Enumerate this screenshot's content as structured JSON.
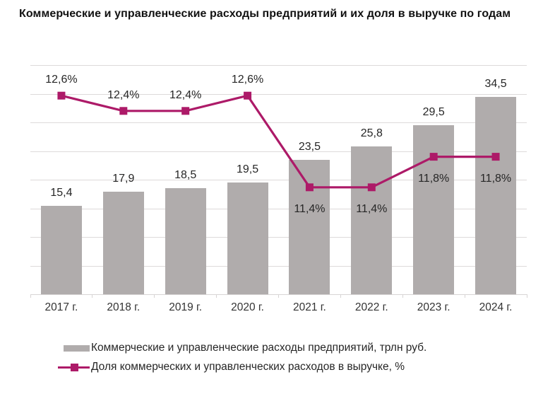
{
  "title": "Коммерческие и управленческие расходы предприятий и их доля в выручке по годам",
  "colors": {
    "bar": "#b0acac",
    "line": "#ad1a68",
    "grid": "#dddada",
    "axis": "#d7d4d4",
    "label": "#262626",
    "title": "#111111",
    "background": "#ffffff"
  },
  "chart_data": {
    "type": "bar+line combo",
    "title": "Коммерческие и управленческие расходы предприятий и их доля в выручке по годам",
    "categories": [
      "2017 г.",
      "2018 г.",
      "2019 г.",
      "2020 г.",
      "2021 г.",
      "2022 г.",
      "2023 г.",
      "2024 г."
    ],
    "series": [
      {
        "name": "Коммерческие и управленческие расходы предприятий, трлн руб.",
        "type": "bar",
        "color": "#b0acac",
        "values": [
          15.4,
          17.9,
          18.5,
          19.5,
          23.5,
          25.8,
          29.5,
          34.5
        ],
        "value_labels": [
          "15,4",
          "17,9",
          "18,5",
          "19,5",
          "23,5",
          "25,8",
          "29,5",
          "34,5"
        ],
        "axis": "primary"
      },
      {
        "name": "Доля коммерческих и управленческих расходов в выручке, %",
        "type": "line",
        "color": "#ad1a68",
        "values": [
          12.6,
          12.4,
          12.4,
          12.6,
          11.4,
          11.4,
          11.8,
          11.8
        ],
        "value_labels": [
          "12,6%",
          "12,4%",
          "12,4%",
          "12,6%",
          "11,4%",
          "11,4%",
          "11,8%",
          "11,8%"
        ],
        "label_side": [
          "above",
          "above",
          "above",
          "above",
          "below",
          "below",
          "below",
          "below"
        ],
        "axis": "secondary"
      }
    ],
    "primary_axis": {
      "min": 0,
      "max": 40,
      "gridline_step": 5,
      "tick_labels_visible": false
    },
    "secondary_axis": {
      "min": 10,
      "max": 13,
      "tick_labels_visible": false
    },
    "grid": true,
    "legend_position": "bottom-left"
  }
}
